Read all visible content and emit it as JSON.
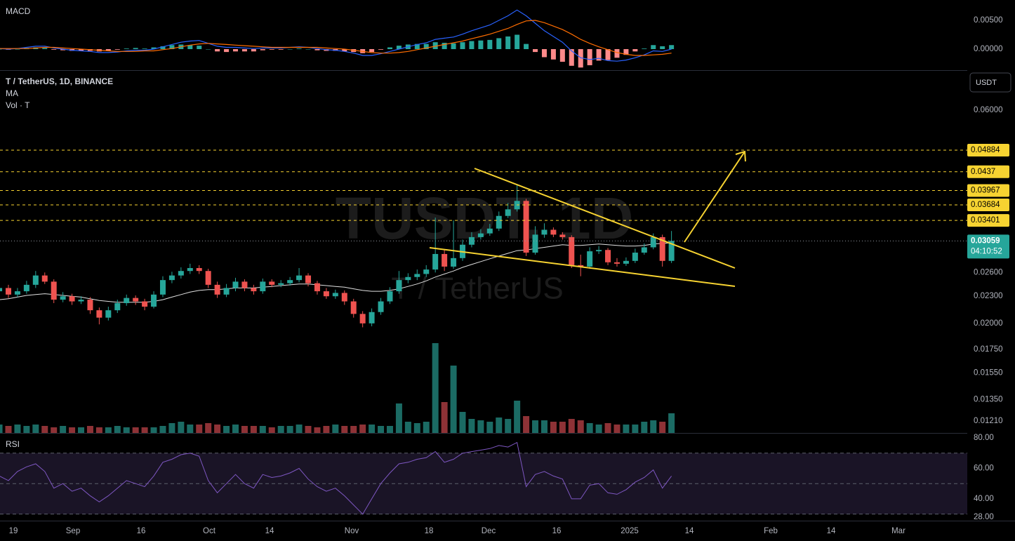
{
  "chart_data": [
    {
      "type": "macd",
      "title": "MACD",
      "ylim": [
        -0.00366,
        0.00854
      ],
      "yticks": [
        {
          "value": 0.005,
          "label": "0.00500"
        },
        {
          "value": 0,
          "label": "0.00000"
        }
      ],
      "series": [
        {
          "color": "#2962ff",
          "values": [
            0.0001,
            0,
            0.0001,
            0.0003,
            0.0005,
            0.0005,
            0.0002,
            0,
            -0.0002,
            -0.0003,
            -0.0004,
            -0.0006,
            -0.0006,
            -0.0005,
            -0.0003,
            -0.0002,
            -0.0002,
            0,
            0.0004,
            0.0008,
            0.0012,
            0.0014,
            0.0015,
            0.001,
            0.0005,
            0.0003,
            0.0003,
            0.0002,
            0.0001,
            0.0002,
            0.0002,
            0.0002,
            0.0003,
            0.0004,
            0.0003,
            0.0001,
            -0.0001,
            -0.0002,
            -0.0004,
            -0.0007,
            -0.0011,
            -0.0011,
            -0.0008,
            -0.0004,
            0,
            0.0004,
            0.0008,
            0.0011,
            0.0017,
            0.0019,
            0.0021,
            0.0026,
            0.0032,
            0.0037,
            0.0042,
            0.005,
            0.0058,
            0.0068,
            0.0058,
            0.0045,
            0.0032,
            0.0022,
            0.0012,
            -0.0003,
            -0.0015,
            -0.0018,
            -0.0016,
            -0.002,
            -0.0021,
            -0.0019,
            -0.0015,
            -0.001,
            -0.0003,
            -0.0004,
            0
          ]
        },
        {
          "color": "#ff6d00",
          "values": [
            0.0001,
            0.0001,
            0.0001,
            0.0001,
            0.0002,
            0.0003,
            0.0003,
            0.0002,
            0.0001,
            0,
            -0.0001,
            -0.0002,
            -0.0003,
            -0.0004,
            -0.0004,
            -0.0004,
            -0.0003,
            -0.0003,
            -0.0001,
            0.0001,
            0.0004,
            0.0007,
            0.0009,
            0.001,
            0.0009,
            0.0008,
            0.0007,
            0.0006,
            0.0005,
            0.0004,
            0.0003,
            0.0003,
            0.0003,
            0.0003,
            0.0003,
            0.0003,
            0.0002,
            0.0001,
            0,
            -0.0002,
            -0.0004,
            -0.0006,
            -0.0007,
            -0.0007,
            -0.0006,
            -0.0004,
            -0.0001,
            0.0002,
            0.0005,
            0.0008,
            0.0011,
            0.0014,
            0.0018,
            0.0022,
            0.0026,
            0.0031,
            0.0036,
            0.0043,
            0.0049,
            0.005,
            0.0046,
            0.004,
            0.0034,
            0.0026,
            0.0017,
            0.001,
            0.0004,
            -0.0001,
            -0.0006,
            -0.0009,
            -0.0011,
            -0.0011,
            -0.001,
            -0.0009,
            -0.0007
          ]
        }
      ],
      "histogram": {
        "up_color": "#26a69a",
        "down_color": "#ff8a8a",
        "values": [
          0,
          -0.0001,
          0,
          0.0002,
          0.0003,
          0.0002,
          -0.0001,
          -0.0002,
          -0.0003,
          -0.0003,
          -0.0003,
          -0.0004,
          -0.0003,
          -0.0001,
          0.0001,
          0.0002,
          0.0001,
          0.0003,
          0.0005,
          0.0007,
          0.0008,
          0.0007,
          0.0006,
          0,
          -0.0004,
          -0.0005,
          -0.0004,
          -0.0004,
          -0.0004,
          -0.0002,
          -0.0001,
          -0.0001,
          0,
          0.0001,
          0,
          -0.0002,
          -0.0003,
          -0.0003,
          -0.0004,
          -0.0005,
          -0.0007,
          -0.0005,
          -0.0001,
          0.0003,
          0.0006,
          0.0008,
          0.0009,
          0.0009,
          0.0012,
          0.0011,
          0.001,
          0.0012,
          0.0014,
          0.0015,
          0.0016,
          0.0019,
          0.0022,
          0.0025,
          0.0009,
          -0.0005,
          -0.0014,
          -0.0018,
          -0.0022,
          -0.0029,
          -0.0032,
          -0.0028,
          -0.002,
          -0.0019,
          -0.0015,
          -0.001,
          -0.0004,
          0.0001,
          0.0007,
          0.0005,
          0.0007
        ]
      }
    },
    {
      "type": "candlestick",
      "title": "T / TetherUS, 1D, BINANCE",
      "indicators": [
        "MA",
        "Vol · T"
      ],
      "watermark": [
        "TUSDT, 1D",
        "T / TetherUS"
      ],
      "currency": "USDT",
      "log_scale": true,
      "ylim": [
        0.01137,
        0.0735
      ],
      "yticks": [
        {
          "value": 0.06,
          "label": "0.06000"
        },
        {
          "value": 0.026,
          "label": "0.02600"
        },
        {
          "value": 0.023,
          "label": "0.02300"
        },
        {
          "value": 0.02,
          "label": "0.02000"
        },
        {
          "value": 0.0175,
          "label": "0.01750"
        },
        {
          "value": 0.0155,
          "label": "0.01550"
        },
        {
          "value": 0.0135,
          "label": "0.01350"
        },
        {
          "value": 0.0121,
          "label": "0.01210"
        }
      ],
      "up_color": "#26a69a",
      "down_color": "#ef5350",
      "open": [
        0.0236,
        0.024,
        0.0232,
        0.0236,
        0.0244,
        0.0256,
        0.0248,
        0.0226,
        0.023,
        0.0224,
        0.0226,
        0.0214,
        0.0206,
        0.0214,
        0.0222,
        0.0228,
        0.0224,
        0.0218,
        0.0232,
        0.025,
        0.0256,
        0.0262,
        0.0266,
        0.0262,
        0.0244,
        0.0232,
        0.024,
        0.0248,
        0.024,
        0.0236,
        0.0248,
        0.0244,
        0.0246,
        0.025,
        0.0256,
        0.0246,
        0.0236,
        0.023,
        0.0234,
        0.0224,
        0.021,
        0.02,
        0.0212,
        0.0224,
        0.0236,
        0.025,
        0.0254,
        0.0258,
        0.0264,
        0.0286,
        0.0268,
        0.028,
        0.03,
        0.0312,
        0.0318,
        0.0326,
        0.0348,
        0.036,
        0.0376,
        0.0288,
        0.0316,
        0.0324,
        0.0316,
        0.0312,
        0.027,
        0.0268,
        0.029,
        0.0292,
        0.0274,
        0.0272,
        0.0276,
        0.0288,
        0.0296,
        0.0312,
        0.0276
      ],
      "high": [
        0.0245,
        0.0244,
        0.024,
        0.0249,
        0.0262,
        0.026,
        0.0251,
        0.0235,
        0.0233,
        0.023,
        0.0229,
        0.0217,
        0.0218,
        0.0226,
        0.0232,
        0.0231,
        0.0227,
        0.0236,
        0.0255,
        0.0261,
        0.0267,
        0.0272,
        0.027,
        0.0265,
        0.0248,
        0.0245,
        0.0253,
        0.0251,
        0.0244,
        0.0252,
        0.0251,
        0.025,
        0.0254,
        0.0266,
        0.0259,
        0.0249,
        0.024,
        0.0238,
        0.0237,
        0.0227,
        0.0213,
        0.0216,
        0.0228,
        0.0241,
        0.0262,
        0.0259,
        0.0264,
        0.027,
        0.0345,
        0.0292,
        0.034,
        0.0308,
        0.032,
        0.0325,
        0.0334,
        0.0356,
        0.0372,
        0.041,
        0.038,
        0.033,
        0.0335,
        0.0328,
        0.032,
        0.0315,
        0.0285,
        0.0296,
        0.0298,
        0.0295,
        0.028,
        0.0281,
        0.0294,
        0.0302,
        0.0318,
        0.0316,
        0.0322
      ],
      "low": [
        0.0231,
        0.0228,
        0.0229,
        0.0233,
        0.024,
        0.0245,
        0.0222,
        0.0223,
        0.022,
        0.0221,
        0.021,
        0.0199,
        0.0203,
        0.0211,
        0.0219,
        0.022,
        0.0214,
        0.0216,
        0.0229,
        0.0246,
        0.0252,
        0.0258,
        0.0258,
        0.024,
        0.0228,
        0.0229,
        0.0236,
        0.0236,
        0.0232,
        0.0233,
        0.0241,
        0.0241,
        0.0243,
        0.0247,
        0.0242,
        0.0232,
        0.0227,
        0.0227,
        0.022,
        0.0206,
        0.0196,
        0.0197,
        0.0209,
        0.0221,
        0.0233,
        0.0246,
        0.025,
        0.0254,
        0.026,
        0.0262,
        0.0265,
        0.0276,
        0.0296,
        0.0308,
        0.0314,
        0.0322,
        0.0344,
        0.0356,
        0.0283,
        0.0285,
        0.0311,
        0.0312,
        0.0308,
        0.0266,
        0.0255,
        0.0265,
        0.0286,
        0.027,
        0.0268,
        0.0269,
        0.0273,
        0.0285,
        0.0293,
        0.0268,
        0.0273
      ],
      "close": [
        0.024,
        0.0232,
        0.0236,
        0.0244,
        0.0256,
        0.0248,
        0.0226,
        0.023,
        0.0224,
        0.0226,
        0.0214,
        0.0206,
        0.0214,
        0.0222,
        0.0228,
        0.0224,
        0.0218,
        0.0232,
        0.025,
        0.0256,
        0.0262,
        0.0266,
        0.0262,
        0.0244,
        0.0232,
        0.024,
        0.0248,
        0.024,
        0.0236,
        0.0248,
        0.0244,
        0.0246,
        0.025,
        0.0256,
        0.0246,
        0.0236,
        0.023,
        0.0234,
        0.0224,
        0.021,
        0.02,
        0.0212,
        0.0224,
        0.0236,
        0.025,
        0.0254,
        0.0258,
        0.0264,
        0.0286,
        0.0268,
        0.028,
        0.03,
        0.0312,
        0.0318,
        0.0326,
        0.0348,
        0.036,
        0.0376,
        0.0288,
        0.0316,
        0.0324,
        0.0316,
        0.0312,
        0.027,
        0.0268,
        0.029,
        0.0292,
        0.0274,
        0.0272,
        0.0276,
        0.0288,
        0.0296,
        0.0312,
        0.0276,
        0.0306
      ],
      "ma": {
        "color": "#e0e0e0",
        "values": [
          0.0226,
          0.0227,
          0.0229,
          0.0231,
          0.0232,
          0.0233,
          0.0232,
          0.0231,
          0.023,
          0.0229,
          0.0227,
          0.0225,
          0.0224,
          0.0223,
          0.0223,
          0.0223,
          0.0223,
          0.0224,
          0.0226,
          0.0229,
          0.0232,
          0.0235,
          0.0237,
          0.0238,
          0.0238,
          0.0239,
          0.024,
          0.024,
          0.024,
          0.0241,
          0.0242,
          0.0243,
          0.0244,
          0.0245,
          0.0245,
          0.0244,
          0.0243,
          0.0242,
          0.0241,
          0.0239,
          0.0237,
          0.0236,
          0.0236,
          0.0237,
          0.0239,
          0.0242,
          0.0245,
          0.0249,
          0.0254,
          0.0258,
          0.0262,
          0.0267,
          0.0271,
          0.0275,
          0.0279,
          0.0283,
          0.0287,
          0.0291,
          0.0292,
          0.0294,
          0.0296,
          0.0298,
          0.03,
          0.0299,
          0.0299,
          0.03,
          0.0301,
          0.03,
          0.0299,
          0.0298,
          0.0298,
          0.0299,
          0.0301,
          0.0302,
          0.0303
        ]
      },
      "volume": {
        "ylim": [
          0,
          100
        ],
        "up_color": "#1b6b64",
        "down_color": "#8e3236",
        "values": [
          6,
          5,
          6,
          5,
          6,
          5,
          4,
          5,
          4,
          4,
          5,
          4,
          4,
          5,
          4,
          4,
          4,
          4,
          5,
          7,
          8,
          6,
          6,
          7,
          6,
          5,
          6,
          5,
          5,
          5,
          4,
          5,
          5,
          6,
          5,
          4,
          5,
          6,
          5,
          5,
          6,
          6,
          5,
          5,
          21,
          8,
          7,
          8,
          64,
          22,
          48,
          15,
          10,
          9,
          8,
          11,
          10,
          23,
          12,
          9,
          9,
          8,
          8,
          10,
          9,
          7,
          6,
          7,
          6,
          6,
          6,
          8,
          9,
          8,
          14
        ]
      },
      "level_color": "#f7d331",
      "levels": [
        0.04884,
        0.0437,
        0.03967,
        0.03684,
        0.03401
      ],
      "last_price": {
        "value": 0.03059,
        "label": "0.03059",
        "countdown": "04:10:52",
        "color": "#26a69a"
      }
    },
    {
      "type": "line",
      "title": "RSI",
      "ylim": [
        25.7,
        82.8
      ],
      "yticks": [
        {
          "value": 80,
          "label": "80.00"
        },
        {
          "value": 60,
          "label": "60.00"
        },
        {
          "value": 40,
          "label": "40.00"
        },
        {
          "value": 28,
          "label": "28.00"
        }
      ],
      "bands": [
        70,
        50,
        30
      ],
      "band_fill": "#1a1426",
      "color": "#7e57c2",
      "values": [
        55,
        52,
        58,
        61,
        63,
        58,
        47,
        50,
        45,
        47,
        42,
        38,
        42,
        47,
        52,
        50,
        48,
        55,
        64,
        66,
        69,
        70,
        68,
        52,
        44,
        50,
        56,
        50,
        47,
        56,
        54,
        55,
        57,
        60,
        53,
        48,
        45,
        47,
        42,
        36,
        30,
        40,
        50,
        57,
        63,
        64,
        66,
        67,
        71,
        64,
        66,
        70,
        71,
        72,
        73,
        75,
        74,
        77,
        48,
        56,
        58,
        55,
        53,
        40,
        40,
        49,
        50,
        44,
        43,
        46,
        51,
        54,
        59,
        47,
        55
      ],
      "x_labels": [
        "19",
        "Sep",
        "16",
        "Oct",
        "14",
        "Nov",
        "18",
        "Dec",
        "16",
        "2025",
        "14",
        "Feb",
        "14",
        "Mar"
      ]
    }
  ]
}
